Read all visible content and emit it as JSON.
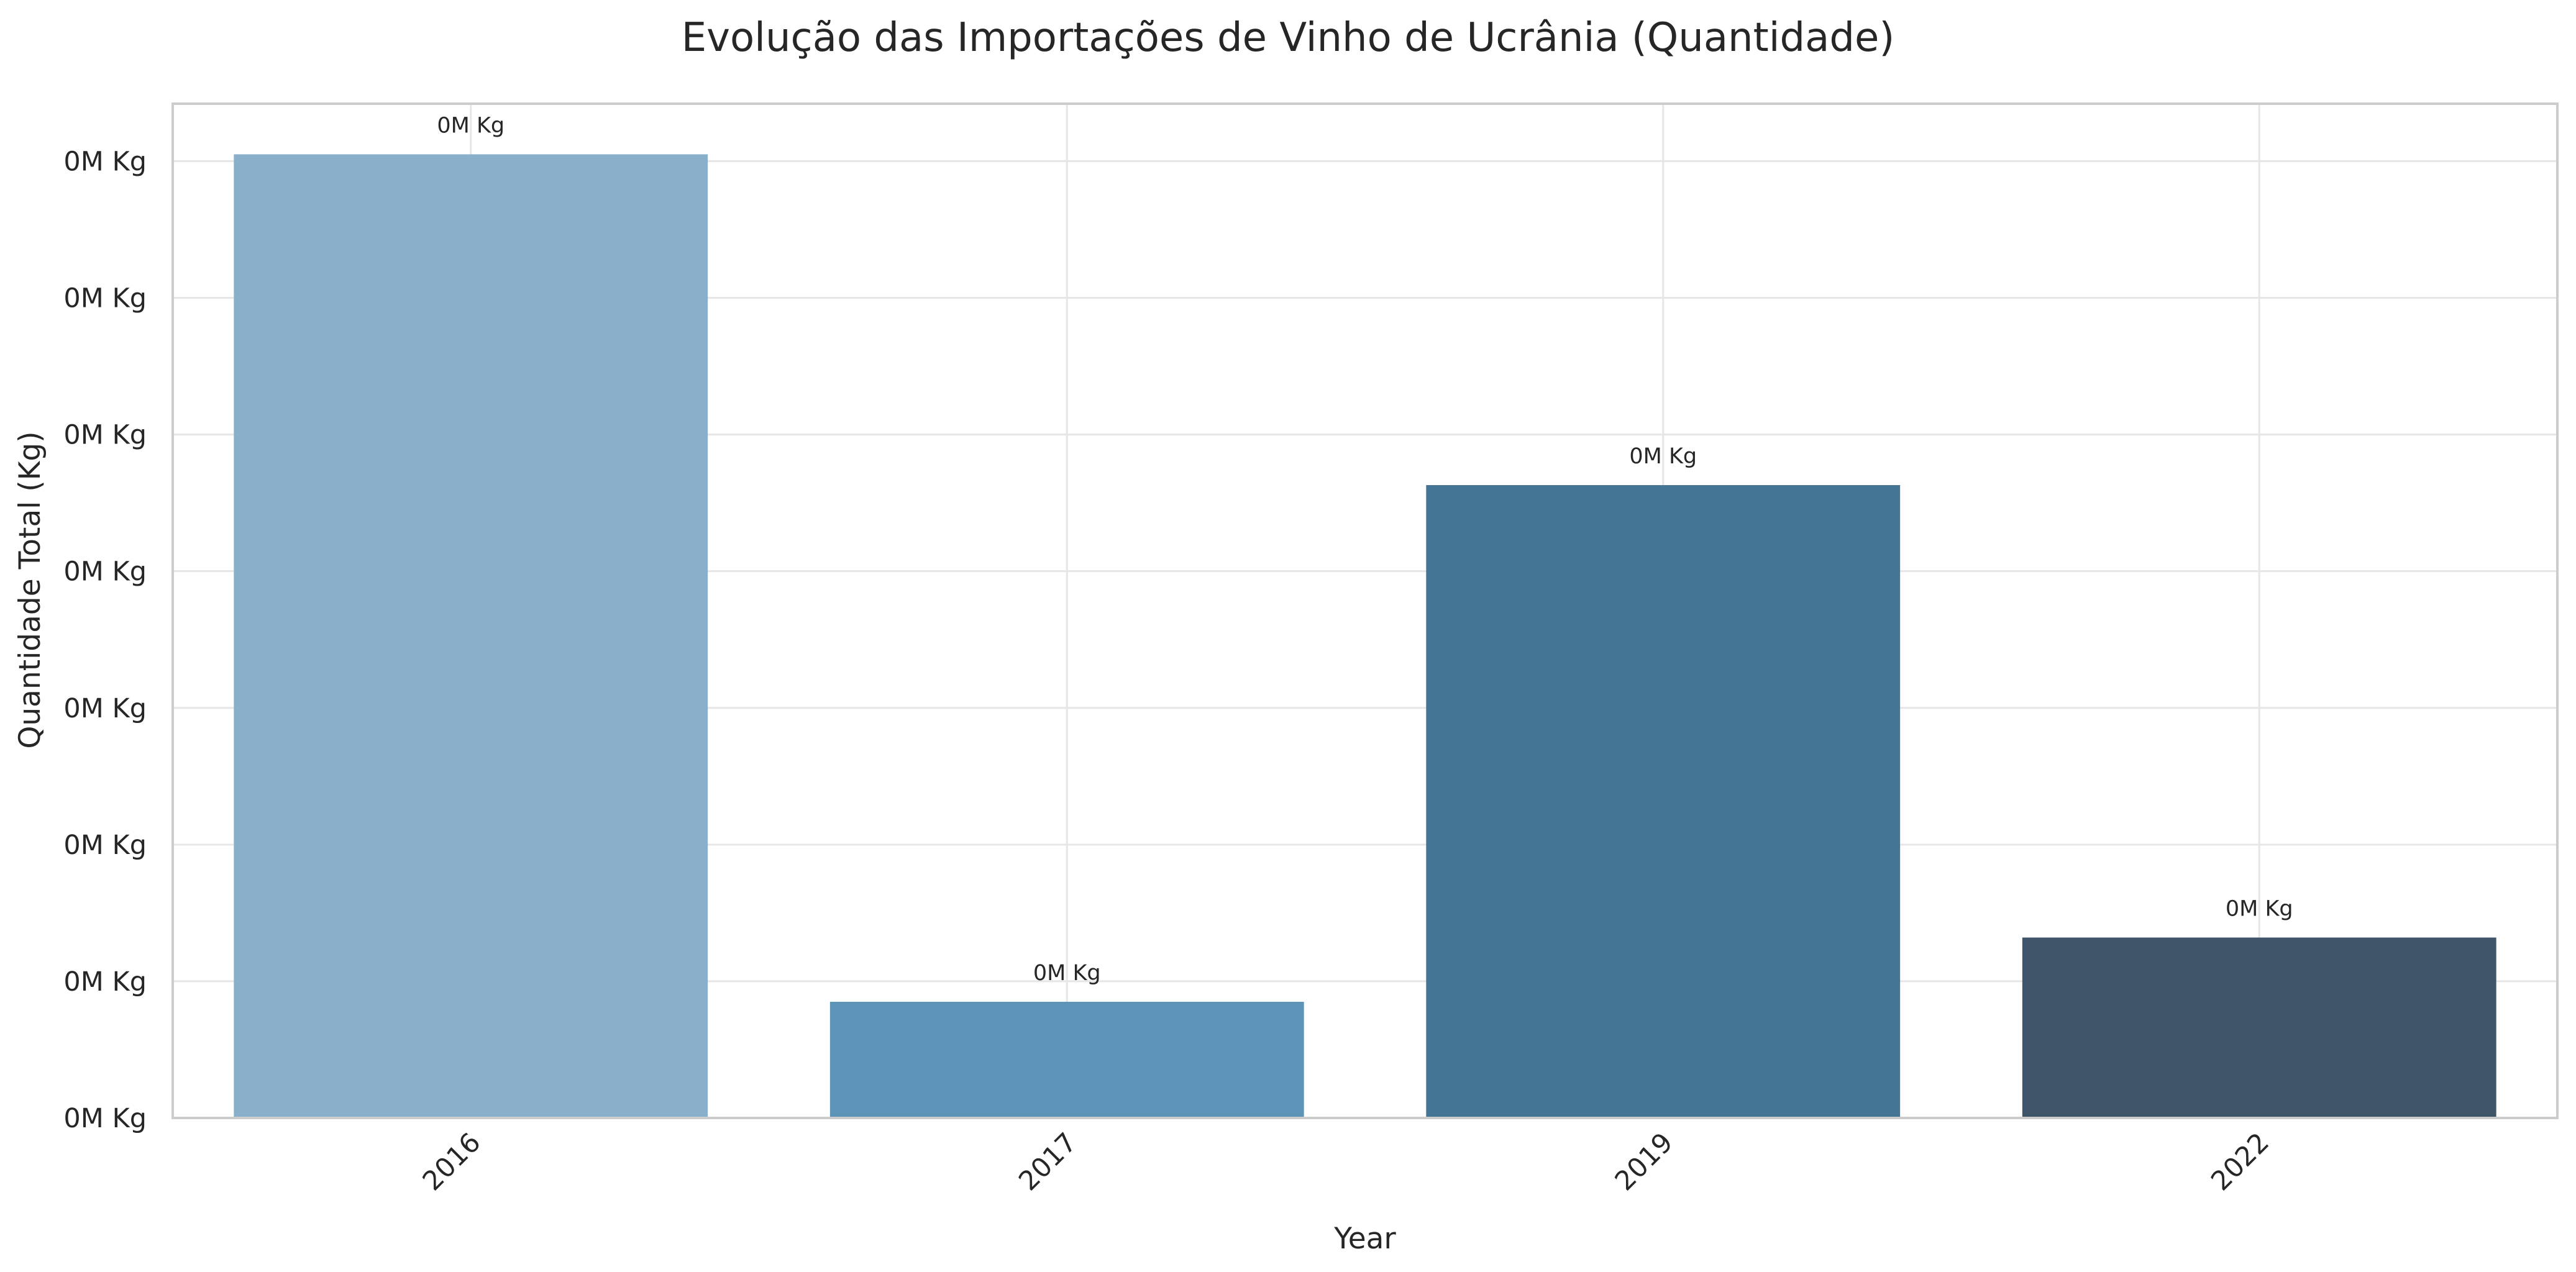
{
  "chart_data": {
    "type": "bar",
    "title": "Evolução das Importações de Vinho de Ucrânia (Quantidade)",
    "xlabel": "Year",
    "ylabel": "Quantidade Total (Kg)",
    "categories": [
      "2016",
      "2017",
      "2019",
      "2022"
    ],
    "values": [
      70.5,
      8.5,
      46.3,
      13.2
    ],
    "data_labels": [
      "0M Kg",
      "0M Kg",
      "0M Kg",
      "0M Kg"
    ],
    "colors": [
      "#89afca",
      "#5d93b7",
      "#457594",
      "#3e5468"
    ],
    "ylim": [
      0,
      74.2
    ],
    "yticks": [
      0,
      10,
      20,
      30,
      40,
      50,
      60,
      70
    ],
    "ytick_labels": [
      "0M Kg",
      "0M Kg",
      "0M Kg",
      "0M Kg",
      "0M Kg",
      "0M Kg",
      "0M Kg",
      "0M Kg"
    ],
    "grid": true,
    "legend": "none"
  }
}
